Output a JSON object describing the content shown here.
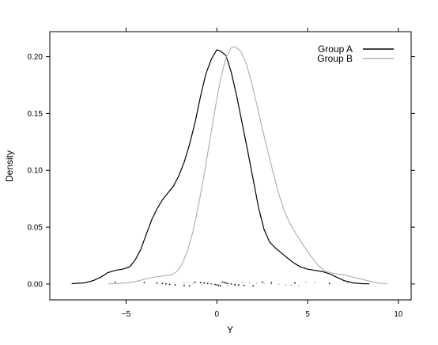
{
  "chart_data": {
    "type": "line",
    "xlabel": "Y",
    "ylabel": "Density",
    "xlim": [
      -9.2,
      10.7
    ],
    "ylim": [
      -0.014,
      0.222
    ],
    "x_ticks": [
      {
        "value": -5,
        "label": "−5"
      },
      {
        "value": 0,
        "label": "0"
      },
      {
        "value": 5,
        "label": "5"
      },
      {
        "value": 10,
        "label": "10"
      }
    ],
    "y_ticks": [
      {
        "value": 0.0,
        "label": "0.00"
      },
      {
        "value": 0.05,
        "label": "0.05"
      },
      {
        "value": 0.1,
        "label": "0.10"
      },
      {
        "value": 0.15,
        "label": "0.15"
      },
      {
        "value": 0.2,
        "label": "0.20"
      }
    ],
    "legend_position": "top-right",
    "series": [
      {
        "name": "Group A",
        "color": "#000000",
        "x": [
          -8.0,
          -7.3,
          -6.8,
          -6.4,
          -6.0,
          -5.6,
          -5.2,
          -4.8,
          -4.5,
          -4.2,
          -3.9,
          -3.6,
          -3.3,
          -3.0,
          -2.7,
          -2.4,
          -2.1,
          -1.8,
          -1.5,
          -1.2,
          -0.9,
          -0.6,
          -0.3,
          0.0,
          0.2,
          0.5,
          0.8,
          1.1,
          1.4,
          1.7,
          2.0,
          2.3,
          2.6,
          2.9,
          3.2,
          3.5,
          3.8,
          4.2,
          4.6,
          5.0,
          5.4,
          5.8,
          6.2,
          6.6,
          7.0,
          7.5,
          8.0,
          8.4
        ],
        "y": [
          0.0003,
          0.001,
          0.003,
          0.006,
          0.01,
          0.012,
          0.013,
          0.015,
          0.021,
          0.03,
          0.043,
          0.056,
          0.066,
          0.074,
          0.08,
          0.086,
          0.095,
          0.107,
          0.123,
          0.142,
          0.165,
          0.185,
          0.198,
          0.206,
          0.205,
          0.201,
          0.186,
          0.165,
          0.141,
          0.117,
          0.092,
          0.067,
          0.048,
          0.037,
          0.032,
          0.028,
          0.024,
          0.019,
          0.015,
          0.013,
          0.012,
          0.011,
          0.009,
          0.006,
          0.003,
          0.001,
          0.0003,
          0.0001
        ]
      },
      {
        "name": "Group B",
        "color": "#b3b3b3",
        "x": [
          -6.0,
          -5.5,
          -5.0,
          -4.5,
          -4.0,
          -3.5,
          -3.0,
          -2.5,
          -2.2,
          -1.9,
          -1.6,
          -1.3,
          -1.0,
          -0.7,
          -0.4,
          -0.1,
          0.2,
          0.5,
          0.8,
          1.0,
          1.3,
          1.6,
          1.9,
          2.2,
          2.5,
          2.8,
          3.1,
          3.4,
          3.7,
          4.0,
          4.4,
          4.8,
          5.2,
          5.6,
          6.0,
          6.5,
          7.0,
          7.5,
          8.0,
          8.5,
          9.0,
          9.4
        ],
        "y": [
          0.0001,
          0.0003,
          0.001,
          0.002,
          0.004,
          0.006,
          0.007,
          0.008,
          0.011,
          0.018,
          0.03,
          0.047,
          0.07,
          0.096,
          0.125,
          0.154,
          0.18,
          0.199,
          0.208,
          0.209,
          0.205,
          0.195,
          0.178,
          0.158,
          0.137,
          0.117,
          0.098,
          0.08,
          0.065,
          0.054,
          0.043,
          0.033,
          0.024,
          0.016,
          0.011,
          0.009,
          0.008,
          0.006,
          0.004,
          0.002,
          0.0005,
          0.0001
        ]
      }
    ],
    "rug": [
      {
        "name": "Group A",
        "color": "#000000",
        "x": [
          -5.6,
          -4.0,
          -3.3,
          -3.0,
          -2.8,
          -2.6,
          -2.3,
          -1.8,
          -1.5,
          -1.2,
          -0.9,
          -0.7,
          -0.5,
          -0.3,
          -0.1,
          0.0,
          0.1,
          0.2,
          0.3,
          0.4,
          0.5,
          0.6,
          0.8,
          1.0,
          1.2,
          1.5,
          2.0,
          2.5,
          3.0,
          4.3,
          6.2
        ]
      },
      {
        "name": "Group B",
        "color": "#b3b3b3",
        "x": [
          -1.8,
          -1.3,
          -0.8,
          -0.3,
          0.2,
          0.6,
          1.0,
          1.4,
          1.8,
          2.2,
          2.6,
          3.0,
          3.4,
          3.8,
          4.1,
          4.5,
          4.9,
          5.4,
          7.2
        ]
      }
    ]
  }
}
